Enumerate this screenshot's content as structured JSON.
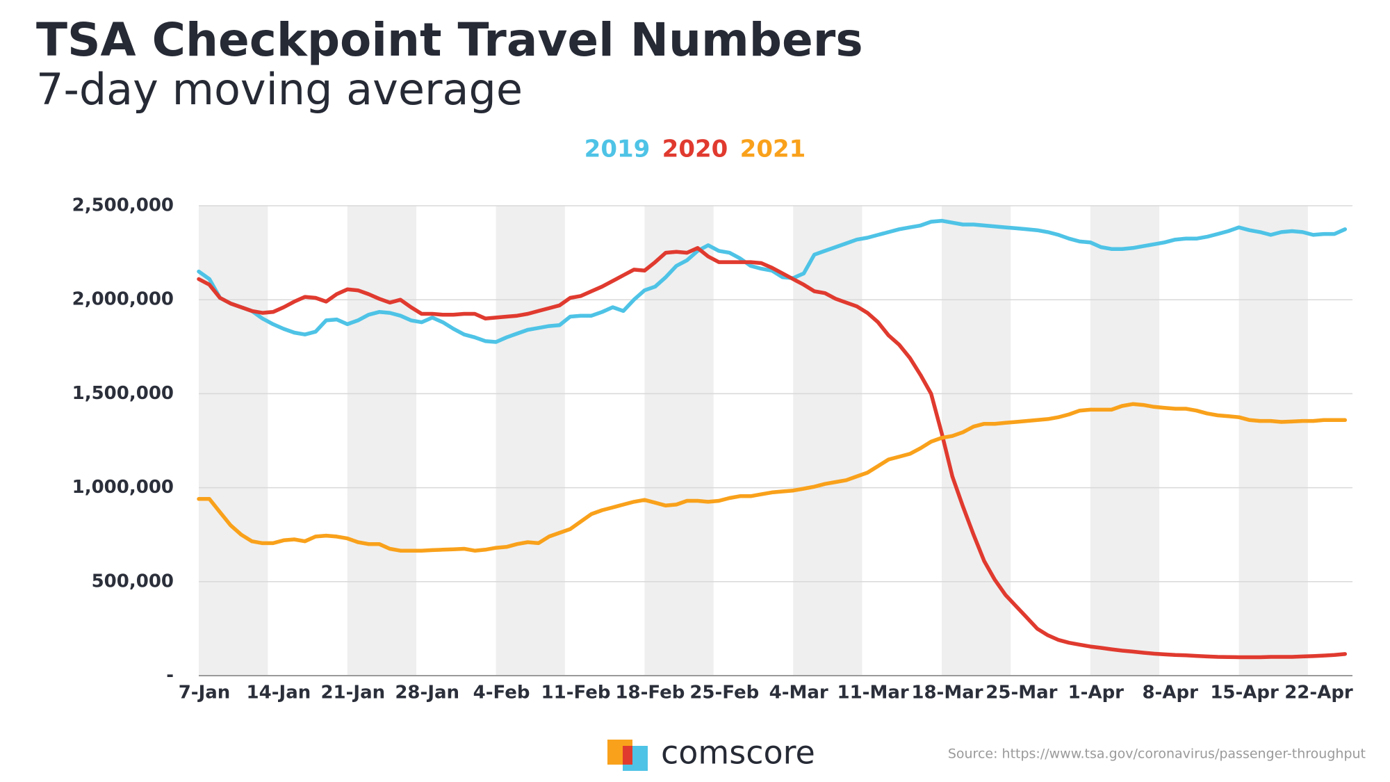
{
  "chart_data": {
    "type": "line",
    "title": "TSA Checkpoint Travel Numbers",
    "subtitle": "7-day moving average",
    "source": "Source: https://www.tsa.gov/coronavirus/passenger-throughput",
    "logo_text": "comscore",
    "legend": "top",
    "grid": true,
    "categories": [
      "7-Jan",
      null,
      null,
      null,
      null,
      null,
      null,
      "14-Jan",
      null,
      null,
      null,
      null,
      null,
      null,
      "21-Jan",
      null,
      null,
      null,
      null,
      null,
      null,
      "28-Jan",
      null,
      null,
      null,
      null,
      null,
      null,
      "4-Feb",
      null,
      null,
      null,
      null,
      null,
      null,
      "11-Feb",
      null,
      null,
      null,
      null,
      null,
      null,
      "18-Feb",
      null,
      null,
      null,
      null,
      null,
      null,
      "25-Feb",
      null,
      null,
      null,
      null,
      null,
      null,
      "4-Mar",
      null,
      null,
      null,
      null,
      null,
      null,
      "11-Mar",
      null,
      null,
      null,
      null,
      null,
      null,
      "18-Mar",
      null,
      null,
      null,
      null,
      null,
      null,
      "25-Mar",
      null,
      null,
      null,
      null,
      null,
      null,
      "1-Apr",
      null,
      null,
      null,
      null,
      null,
      null,
      "8-Apr",
      null,
      null,
      null,
      null,
      null,
      null,
      "15-Apr",
      null,
      null,
      null,
      null,
      null,
      null,
      "22-Apr",
      null,
      null,
      null
    ],
    "ylim": [
      0,
      2500000
    ],
    "yticks": [
      {
        "value": 0,
        "label": "-"
      },
      {
        "value": 500000,
        "label": "500,000"
      },
      {
        "value": 1000000,
        "label": "1,000,000"
      },
      {
        "value": 1500000,
        "label": "1,500,000"
      },
      {
        "value": 2000000,
        "label": "2,000,000"
      },
      {
        "value": 2500000,
        "label": "2,500,000"
      }
    ],
    "series": [
      {
        "name": "2019",
        "color": "#4ec3e6",
        "values": [
          2150000,
          2110000,
          2010000,
          1980000,
          1960000,
          1940000,
          1900000,
          1870000,
          1845000,
          1825000,
          1815000,
          1830000,
          1890000,
          1895000,
          1870000,
          1890000,
          1920000,
          1935000,
          1930000,
          1915000,
          1890000,
          1880000,
          1905000,
          1880000,
          1845000,
          1815000,
          1800000,
          1780000,
          1775000,
          1800000,
          1820000,
          1840000,
          1850000,
          1860000,
          1865000,
          1910000,
          1915000,
          1915000,
          1935000,
          1960000,
          1940000,
          2000000,
          2050000,
          2070000,
          2120000,
          2180000,
          2210000,
          2260000,
          2290000,
          2260000,
          2250000,
          2220000,
          2180000,
          2165000,
          2155000,
          2120000,
          2115000,
          2140000,
          2240000,
          2260000,
          2280000,
          2300000,
          2320000,
          2330000,
          2345000,
          2360000,
          2375000,
          2385000,
          2395000,
          2415000,
          2420000,
          2410000,
          2400000,
          2400000,
          2395000,
          2390000,
          2385000,
          2380000,
          2375000,
          2370000,
          2360000,
          2345000,
          2325000,
          2310000,
          2305000,
          2280000,
          2270000,
          2270000,
          2275000,
          2285000,
          2295000,
          2305000,
          2320000,
          2325000,
          2325000,
          2335000,
          2350000,
          2365000,
          2385000,
          2370000,
          2360000,
          2345000,
          2360000,
          2365000,
          2360000,
          2345000,
          2350000,
          2350000,
          2375000
        ]
      },
      {
        "name": "2020",
        "color": "#e03a2f",
        "values": [
          2110000,
          2080000,
          2010000,
          1980000,
          1960000,
          1940000,
          1930000,
          1935000,
          1960000,
          1990000,
          2015000,
          2010000,
          1990000,
          2030000,
          2055000,
          2050000,
          2030000,
          2005000,
          1985000,
          2000000,
          1960000,
          1925000,
          1925000,
          1920000,
          1920000,
          1925000,
          1925000,
          1900000,
          1905000,
          1910000,
          1915000,
          1925000,
          1940000,
          1955000,
          1970000,
          2010000,
          2020000,
          2045000,
          2070000,
          2100000,
          2130000,
          2160000,
          2155000,
          2200000,
          2250000,
          2255000,
          2250000,
          2275000,
          2230000,
          2200000,
          2200000,
          2200000,
          2200000,
          2195000,
          2170000,
          2140000,
          2110000,
          2080000,
          2045000,
          2035000,
          2005000,
          1985000,
          1965000,
          1930000,
          1880000,
          1810000,
          1760000,
          1690000,
          1600000,
          1500000,
          1290000,
          1060000,
          900000,
          750000,
          610000,
          510000,
          430000,
          370000,
          310000,
          250000,
          215000,
          190000,
          175000,
          165000,
          155000,
          148000,
          140000,
          133000,
          128000,
          122000,
          117000,
          113000,
          110000,
          108000,
          105000,
          102000,
          100000,
          99000,
          98000,
          98000,
          98000,
          100000,
          100000,
          100000,
          102000,
          104000,
          107000,
          110000,
          115000
        ]
      },
      {
        "name": "2021",
        "color": "#f9a11b",
        "values": [
          940000,
          940000,
          870000,
          800000,
          750000,
          715000,
          705000,
          705000,
          720000,
          725000,
          715000,
          740000,
          745000,
          740000,
          730000,
          710000,
          700000,
          700000,
          675000,
          665000,
          665000,
          665000,
          668000,
          670000,
          672000,
          675000,
          665000,
          670000,
          680000,
          685000,
          700000,
          710000,
          705000,
          740000,
          760000,
          780000,
          820000,
          860000,
          880000,
          895000,
          910000,
          925000,
          935000,
          920000,
          905000,
          910000,
          930000,
          930000,
          925000,
          930000,
          945000,
          955000,
          955000,
          965000,
          975000,
          980000,
          985000,
          995000,
          1005000,
          1020000,
          1030000,
          1040000,
          1060000,
          1080000,
          1115000,
          1150000,
          1165000,
          1180000,
          1210000,
          1245000,
          1265000,
          1275000,
          1295000,
          1325000,
          1340000,
          1340000,
          1345000,
          1350000,
          1355000,
          1360000,
          1365000,
          1375000,
          1390000,
          1410000,
          1415000,
          1415000,
          1415000,
          1435000,
          1445000,
          1440000,
          1430000,
          1425000,
          1420000,
          1420000,
          1410000,
          1395000,
          1385000,
          1380000,
          1375000,
          1360000,
          1355000,
          1355000,
          1350000,
          1352000,
          1355000,
          1355000,
          1360000,
          1360000,
          1360000
        ]
      }
    ]
  }
}
